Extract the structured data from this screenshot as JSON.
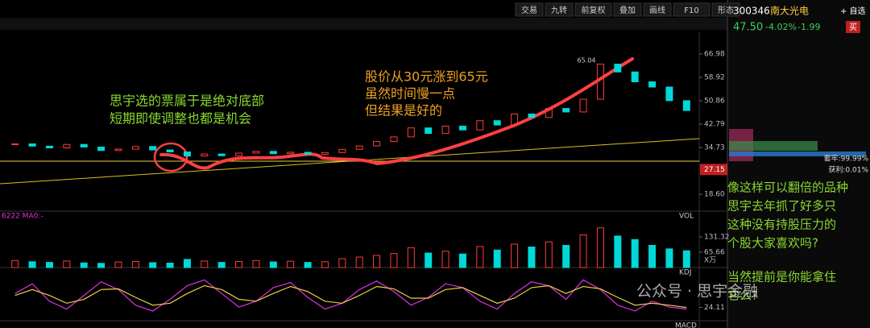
{
  "toolbar": [
    "交易",
    "九转",
    "前复权",
    "叠加",
    "画线",
    "F10",
    "形态"
  ],
  "quote": {
    "code": "300346",
    "name": "南大光电",
    "price": "47.50",
    "change_pct": "-4.02%",
    "change": "-1.99",
    "buy": "买",
    "watchlist": "+ 自选",
    "trapped": "套牢:99.99%",
    "profit": "获利:0.01%"
  },
  "chart_data": {
    "type": "candlestick",
    "closes": [
      36.0,
      35.2,
      34.6,
      35.8,
      34.9,
      33.7,
      34.2,
      35.1,
      33.9,
      33.2,
      31.8,
      32.5,
      31.9,
      32.8,
      33.4,
      32.6,
      33.1,
      32.4,
      33.0,
      34.1,
      35.3,
      36.8,
      38.4,
      41.5,
      39.6,
      42.1,
      40.8,
      44.0,
      42.5,
      46.3,
      45.1,
      48.2,
      47.0,
      51.4,
      63.5,
      60.8,
      57.4,
      55.6,
      50.9,
      47.5
    ],
    "ylim": [
      13.9,
      74.5
    ],
    "yticks": [
      66.98,
      58.92,
      50.86,
      42.79,
      34.73,
      {
        "value": 18.6,
        "label": "18.60"
      }
    ],
    "price_marker": 27.15,
    "peak_label": "65.04",
    "volume": {
      "label": "VOL",
      "legend": "6222  MA0:-",
      "unit": "X万",
      "values": [
        30,
        25,
        22,
        28,
        20,
        18,
        24,
        26,
        21,
        19,
        35,
        28,
        22,
        26,
        30,
        24,
        27,
        22,
        25,
        38,
        45,
        52,
        60,
        85,
        62,
        70,
        58,
        90,
        75,
        100,
        88,
        110,
        95,
        140,
        170,
        135,
        120,
        95,
        80,
        72
      ],
      "ylim": [
        0,
        214
      ],
      "yticks": [
        131.32,
        65.66
      ]
    },
    "kdj": {
      "label": "KDJ",
      "ylim": [
        -10,
        110
      ],
      "yticks": [
        24.11
      ],
      "series": [
        {
          "name": "K",
          "color": "#e030e0",
          "values": [
            60,
            85,
            40,
            20,
            55,
            90,
            70,
            30,
            15,
            45,
            80,
            95,
            60,
            25,
            40,
            75,
            88,
            50,
            20,
            35,
            70,
            92,
            65,
            30,
            50,
            85,
            75,
            40,
            20,
            60,
            90,
            80,
            45,
            95,
            70,
            30,
            15,
            40,
            25,
            20
          ]
        },
        {
          "name": "D",
          "color": "#e8d040",
          "values": [
            55,
            70,
            55,
            35,
            45,
            70,
            72,
            50,
            30,
            35,
            60,
            80,
            70,
            45,
            40,
            60,
            78,
            65,
            40,
            35,
            55,
            78,
            72,
            48,
            48,
            70,
            75,
            55,
            35,
            48,
            75,
            80,
            60,
            78,
            72,
            50,
            30,
            35,
            30,
            24
          ]
        }
      ]
    },
    "macd_label": "MACD"
  },
  "annotations": {
    "left": [
      "思宇选的票属于是绝对底部",
      "短期即使调整也都是机会"
    ],
    "middle": [
      "股价从30元涨到65元",
      "虽然时间慢一点",
      "但结果是好的"
    ],
    "right": [
      "像这样可以翻倍的品种",
      "思宇去年抓了好多只",
      "这种没有持股压力的",
      "个股大家喜欢吗?"
    ],
    "right2": [
      "当然提前是你能拿住",
      "它么?"
    ],
    "watermark": "公众号 · 思宇金融"
  }
}
